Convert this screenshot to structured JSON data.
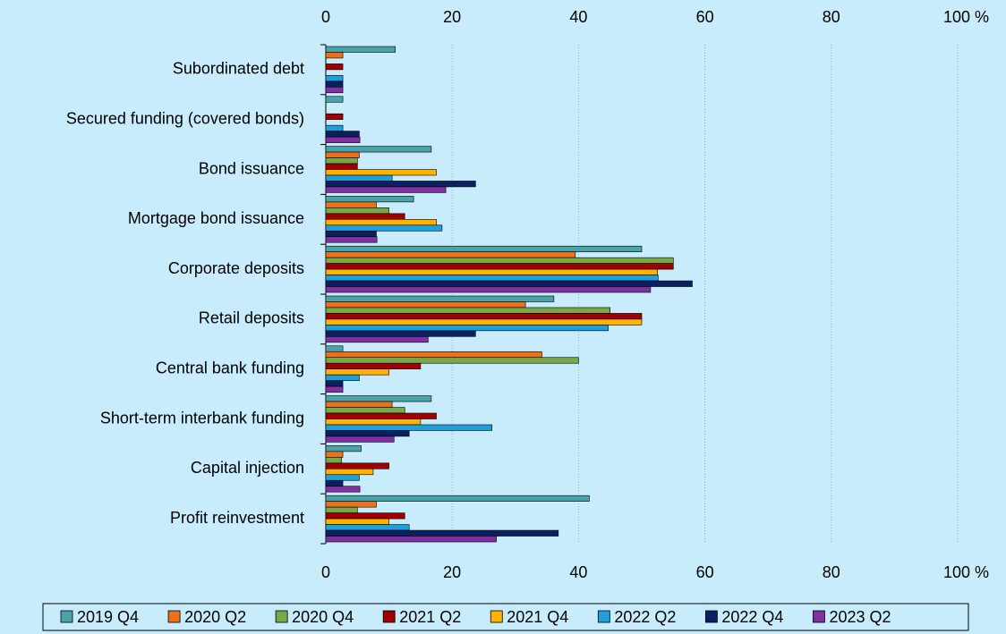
{
  "chart_data": {
    "type": "barh",
    "categories": [
      "Subordinated debt",
      "Secured funding (covered bonds)",
      "Bond issuance",
      "Mortgage bond issuance",
      "Corporate deposits",
      "Retail deposits",
      "Central bank funding",
      "Short-term interbank funding",
      "Capital injection",
      "Profit reinvestment"
    ],
    "series": [
      {
        "name": "2019 Q4",
        "color": "#4aa3a8",
        "values": [
          11,
          2.7,
          16.7,
          13.9,
          50,
          36.1,
          2.7,
          16.7,
          5.6,
          41.7
        ]
      },
      {
        "name": "2020 Q2",
        "color": "#e8731c",
        "values": [
          2.7,
          0,
          5.3,
          8,
          39.5,
          31.6,
          34.2,
          10.5,
          2.7,
          8
        ]
      },
      {
        "name": "2020 Q4",
        "color": "#78a84a",
        "values": [
          0,
          0,
          5,
          10,
          55,
          45,
          40,
          12.5,
          2.5,
          5
        ]
      },
      {
        "name": "2021 Q2",
        "color": "#a00000",
        "values": [
          2.7,
          2.7,
          5,
          12.5,
          55,
          50,
          15,
          17.5,
          10,
          12.5
        ]
      },
      {
        "name": "2021 Q4",
        "color": "#ffb300",
        "values": [
          0,
          0,
          17.5,
          17.5,
          52.5,
          50,
          10,
          15,
          7.5,
          10
        ]
      },
      {
        "name": "2022 Q2",
        "color": "#1ea0dc",
        "values": [
          2.7,
          2.7,
          10.5,
          18.4,
          52.6,
          44.7,
          5.3,
          26.3,
          5.3,
          13.2
        ]
      },
      {
        "name": "2022 Q4",
        "color": "#0a2060",
        "values": [
          2.7,
          5.3,
          23.7,
          8,
          58,
          23.7,
          2.7,
          13.2,
          2.7,
          36.8
        ]
      },
      {
        "name": "2023 Q2",
        "color": "#8030a0",
        "values": [
          2.7,
          5.4,
          19,
          8.1,
          51.4,
          16.2,
          2.7,
          10.8,
          5.4,
          27
        ]
      }
    ],
    "xlim": [
      0,
      100
    ],
    "xticks": [
      0,
      20,
      40,
      60,
      80,
      {
        "value": 100,
        "label": "100 %"
      }
    ],
    "grid": true
  }
}
